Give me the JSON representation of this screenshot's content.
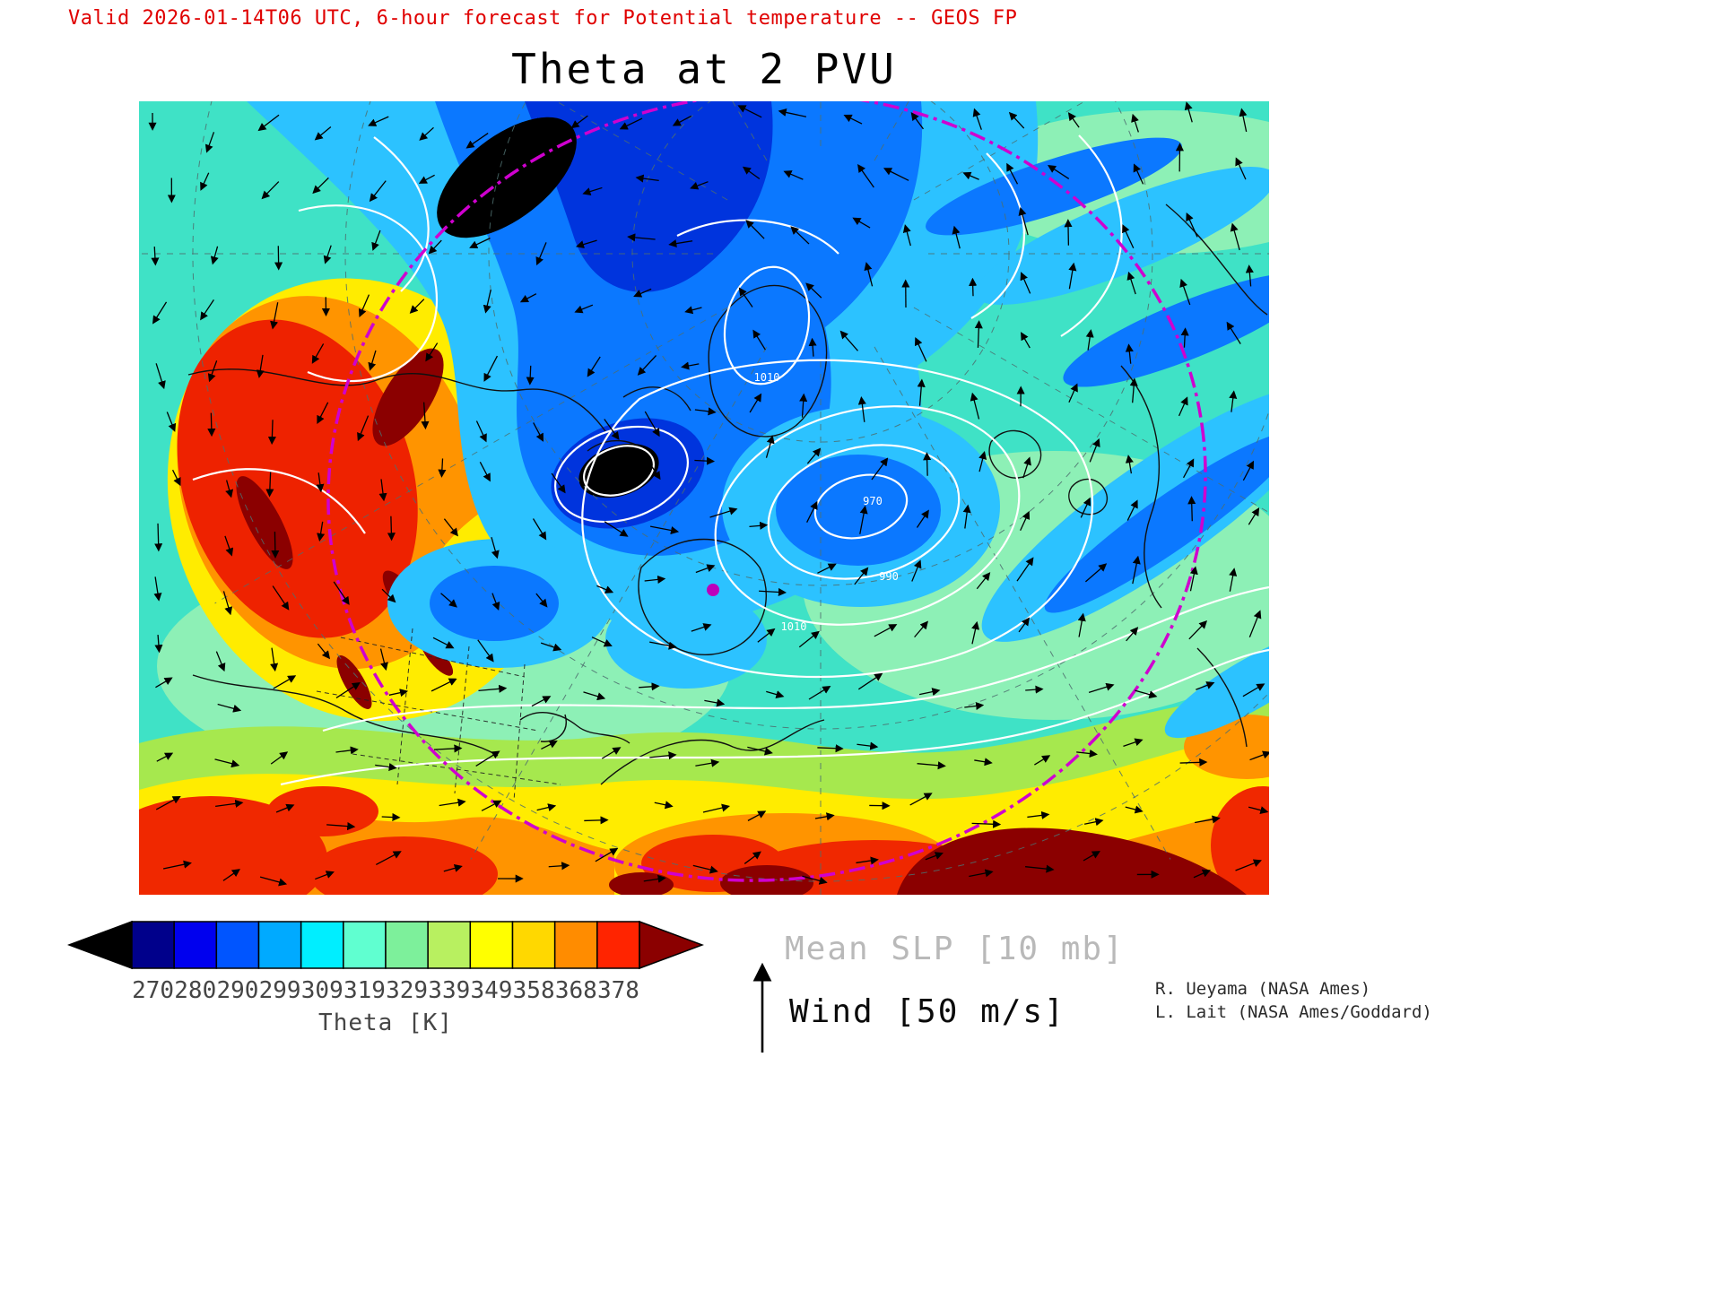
{
  "header": {
    "valid_line": "Valid 2026-01-14T06 UTC, 6-hour forecast for Potential temperature -- GEOS FP"
  },
  "title": "Theta at 2 PVU",
  "colorbar": {
    "unit_label": "Theta [K]",
    "ticks": [
      "270",
      "280",
      "290",
      "299",
      "309",
      "319",
      "329",
      "339",
      "349",
      "358",
      "368",
      "378"
    ],
    "segment_colors": [
      "#00008b",
      "#0000ee",
      "#0055ff",
      "#00aaff",
      "#00eeff",
      "#60ffd0",
      "#7df09b",
      "#b8f060",
      "#ffff00",
      "#ffd800",
      "#ff8c00",
      "#ff2400"
    ],
    "underflow_color": "#000000",
    "overflow_color": "#8b0000"
  },
  "legend": {
    "slp_label": "Mean SLP [10 mb]",
    "wind_label": "Wind [50 m/s]"
  },
  "credits": {
    "line1": "R. Ueyama (NASA Ames)",
    "line2": "L. Lait (NASA Ames/Goddard)"
  },
  "map": {
    "contour_labels": [
      "970",
      "990",
      "1010",
      "1010"
    ],
    "graticule_color": "#4e6e6e",
    "slp_contour_color": "#ffffff",
    "coastline_color": "#101010",
    "highlight_line_color": "#cf00cf"
  },
  "chart_data": {
    "type": "heatmap",
    "title": "Theta at 2 PVU",
    "subtitle": "Valid 2026-01-14T06 UTC, 6-hour forecast for Potential temperature -- GEOS FP",
    "model": "GEOS FP",
    "valid_time": "2026-01-14T06 UTC",
    "forecast_hours": 6,
    "field": "Potential temperature (Theta) on the 2 PVU surface",
    "colorbar": {
      "label": "Theta [K]",
      "tick_values": [
        270,
        280,
        290,
        299,
        309,
        319,
        329,
        339,
        349,
        358,
        368,
        378
      ],
      "colors": [
        "#00008b",
        "#0000ee",
        "#0055ff",
        "#00aaff",
        "#00eeff",
        "#60ffd0",
        "#7df09b",
        "#b8f060",
        "#ffff00",
        "#ffd800",
        "#ff8c00",
        "#ff2400"
      ],
      "underflow_color": "#000000",
      "overflow_color": "#8b0000"
    },
    "overlays": [
      {
        "name": "Mean SLP",
        "units_label": "[10 mb]",
        "visible_contour_labels": [
          970,
          990,
          1010
        ]
      },
      {
        "name": "Wind",
        "reference_label": "[50 m/s]",
        "reference_speed_m_s": 50
      }
    ],
    "legend_position": "bottom",
    "grid": "dashed graticule"
  }
}
